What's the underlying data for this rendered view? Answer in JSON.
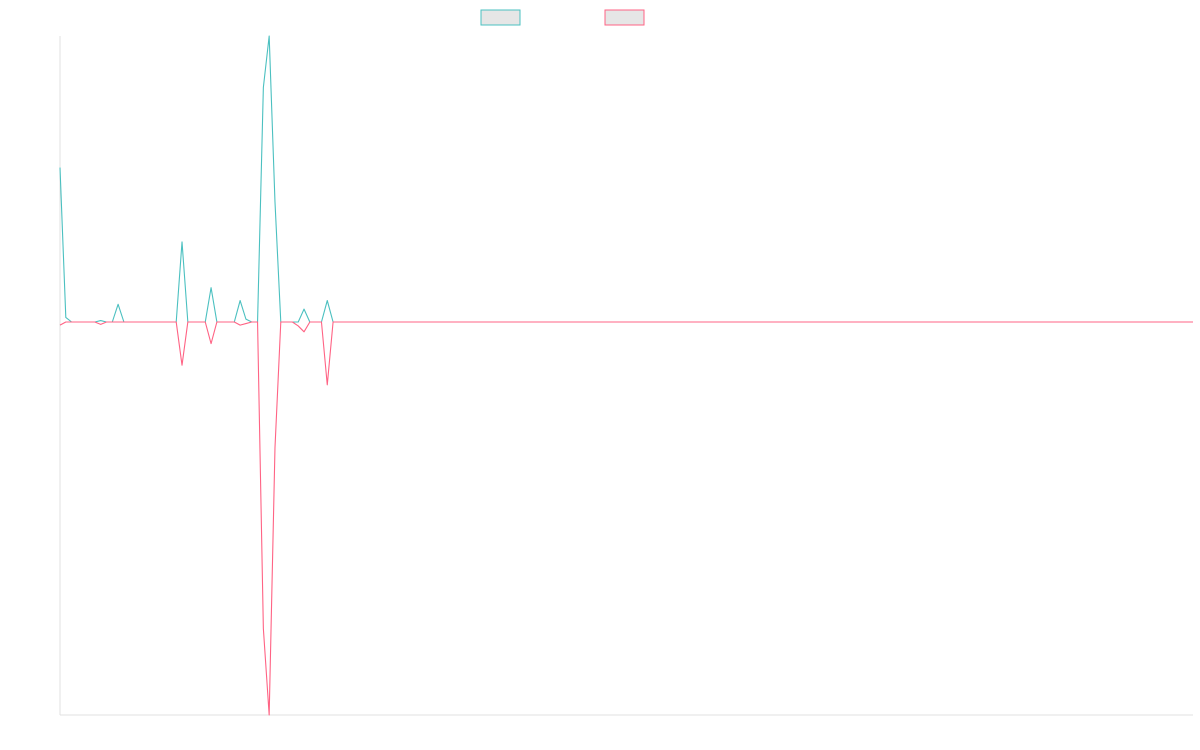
{
  "chart_data": {
    "type": "line",
    "title": "",
    "xlabel": "",
    "ylabel": "",
    "legend": {
      "position": "top-center",
      "entries_text_visible": false
    },
    "grid": false,
    "x_count": 196,
    "ylim": [
      -0.72,
      1.0
    ],
    "series": [
      {
        "color": "#4bc0c0",
        "points": [
          [
            0,
            0.54
          ],
          [
            1,
            0.016
          ],
          [
            2,
            0.0
          ],
          [
            3,
            0.0
          ],
          [
            4,
            0.0
          ],
          [
            5,
            0.0
          ],
          [
            6,
            0.0
          ],
          [
            7,
            0.005
          ],
          [
            8,
            0.0
          ],
          [
            9,
            0.0
          ],
          [
            10,
            0.062
          ],
          [
            11,
            0.0
          ],
          [
            12,
            0.0
          ],
          [
            13,
            0.0
          ],
          [
            14,
            0.0
          ],
          [
            15,
            0.0
          ],
          [
            16,
            0.0
          ],
          [
            17,
            0.0
          ],
          [
            18,
            0.0
          ],
          [
            19,
            0.0
          ],
          [
            20,
            0.0
          ],
          [
            21,
            0.28
          ],
          [
            22,
            0.0
          ],
          [
            23,
            0.0
          ],
          [
            24,
            0.0
          ],
          [
            25,
            0.0
          ],
          [
            26,
            0.12
          ],
          [
            27,
            0.0
          ],
          [
            28,
            0.0
          ],
          [
            29,
            0.0
          ],
          [
            30,
            0.0
          ],
          [
            31,
            0.075
          ],
          [
            32,
            0.01
          ],
          [
            33,
            0.0
          ],
          [
            34,
            0.0
          ],
          [
            35,
            0.82
          ],
          [
            36,
            1.0
          ],
          [
            37,
            0.42
          ],
          [
            38,
            0.0
          ],
          [
            39,
            0.0
          ],
          [
            40,
            0.0
          ],
          [
            41,
            0.0
          ],
          [
            42,
            0.045
          ],
          [
            43,
            0.0
          ],
          [
            44,
            0.0
          ],
          [
            45,
            0.0
          ],
          [
            46,
            0.075
          ],
          [
            47,
            0.0
          ],
          [
            48,
            0.0
          ],
          [
            195,
            0.0
          ]
        ]
      },
      {
        "color": "#ff6384",
        "points": [
          [
            0,
            -0.008
          ],
          [
            1,
            0.0
          ],
          [
            2,
            0.0
          ],
          [
            3,
            0.0
          ],
          [
            4,
            0.0
          ],
          [
            5,
            0.0
          ],
          [
            6,
            0.0
          ],
          [
            7,
            -0.006
          ],
          [
            8,
            0.0
          ],
          [
            9,
            0.0
          ],
          [
            10,
            0.0
          ],
          [
            11,
            0.0
          ],
          [
            12,
            0.0
          ],
          [
            13,
            0.0
          ],
          [
            14,
            0.0
          ],
          [
            15,
            0.0
          ],
          [
            16,
            0.0
          ],
          [
            17,
            0.0
          ],
          [
            18,
            0.0
          ],
          [
            19,
            0.0
          ],
          [
            20,
            0.0
          ],
          [
            21,
            -0.11
          ],
          [
            22,
            0.0
          ],
          [
            23,
            0.0
          ],
          [
            24,
            0.0
          ],
          [
            25,
            0.0
          ],
          [
            26,
            -0.055
          ],
          [
            27,
            0.0
          ],
          [
            28,
            0.0
          ],
          [
            29,
            0.0
          ],
          [
            30,
            0.0
          ],
          [
            31,
            -0.008
          ],
          [
            32,
            -0.004
          ],
          [
            33,
            0.0
          ],
          [
            34,
            0.0
          ],
          [
            35,
            -0.78
          ],
          [
            36,
            -1.0
          ],
          [
            37,
            -0.32
          ],
          [
            38,
            0.0
          ],
          [
            39,
            0.0
          ],
          [
            40,
            0.0
          ],
          [
            41,
            -0.01
          ],
          [
            42,
            -0.025
          ],
          [
            43,
            0.0
          ],
          [
            44,
            0.0
          ],
          [
            45,
            0.0
          ],
          [
            46,
            -0.16
          ],
          [
            47,
            0.0
          ],
          [
            48,
            0.0
          ],
          [
            195,
            0.0
          ]
        ]
      }
    ]
  }
}
